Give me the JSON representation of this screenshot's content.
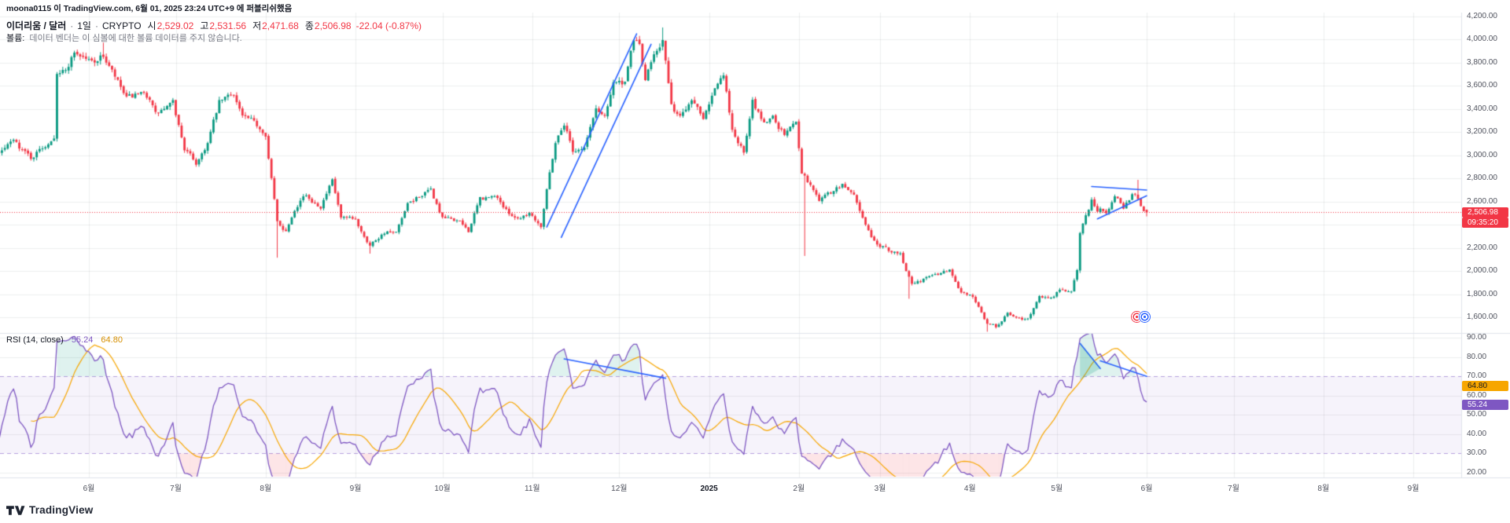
{
  "publish_bar": {
    "text": "moona0115 이 TradingView.com, 6월 01, 2025 23:24 UTC+9 에 퍼블리쉬했음"
  },
  "legend": {
    "symbol": "이더리움 / 달러",
    "interval": "1일",
    "exchange": "CRYPTO",
    "open_label": "시",
    "open": "2,529.02",
    "high_label": "고",
    "high": "2,531.56",
    "low_label": "저",
    "low": "2,471.68",
    "close_label": "종",
    "close": "2,506.98",
    "change": "-22.04 (-0.87%)",
    "volume_label": "볼륨:",
    "volume_message": "데이터 벤더는 이 심볼에 대한 볼륨 데이터를 주지 않습니다."
  },
  "rsi_legend": {
    "title": "RSI (14, close)",
    "value": "55.24",
    "ma_value": "64.80"
  },
  "axis": {
    "price_badge": "2,506.98",
    "countdown": "09:35:20",
    "rsi_badge": "55.24",
    "rsi_ma_badge": "64.80"
  },
  "footer": {
    "brand": "TradingView"
  },
  "colors": {
    "up": "#089981",
    "down": "#f23645",
    "price_line": "#f23645",
    "line_blue": "#2962ff",
    "rsi": "#7e57c2",
    "rsi_ma": "#f7a600",
    "band_fill": "rgba(126,87,194,0.07)",
    "band_line": "rgba(126,87,194,0.55)",
    "ob_fill": "rgba(8,153,129,0.13)",
    "os_fill": "rgba(242,54,69,0.13)",
    "drawing_fill": "rgba(8,153,129,0.22)",
    "grid": "rgba(42,46,57,0.08)",
    "axis_border": "#e0e3eb",
    "badge_text_dark": "#131722"
  },
  "chart_data": {
    "type": "candlestick",
    "title": "이더리움 / 달러 · 1일 · CRYPTO",
    "current_price": 2506.98,
    "last_candle": {
      "open": 2529.02,
      "high": 2531.56,
      "low": 2471.68,
      "close": 2506.98
    },
    "price_axis": {
      "min": 1600,
      "max": 4200,
      "step": 200
    },
    "rsi": {
      "period": 14,
      "value": 55.24,
      "ma": 64.8,
      "band": [
        30,
        70
      ],
      "ticks": [
        90,
        80,
        70,
        60,
        50,
        40,
        30,
        20
      ]
    },
    "time_axis": [
      {
        "label": "6월",
        "date": "2024-06-01",
        "emphasis": false
      },
      {
        "label": "7월",
        "date": "2024-07-01",
        "emphasis": false
      },
      {
        "label": "8월",
        "date": "2024-08-01",
        "emphasis": false
      },
      {
        "label": "9월",
        "date": "2024-09-01",
        "emphasis": false
      },
      {
        "label": "10월",
        "date": "2024-10-01",
        "emphasis": false
      },
      {
        "label": "11월",
        "date": "2024-11-01",
        "emphasis": false
      },
      {
        "label": "12월",
        "date": "2024-12-01",
        "emphasis": false
      },
      {
        "label": "2025",
        "date": "2025-01-01",
        "emphasis": true
      },
      {
        "label": "2월",
        "date": "2025-02-01",
        "emphasis": false
      },
      {
        "label": "3월",
        "date": "2025-03-01",
        "emphasis": false
      },
      {
        "label": "4월",
        "date": "2025-04-01",
        "emphasis": false
      },
      {
        "label": "5월",
        "date": "2025-05-01",
        "emphasis": false
      },
      {
        "label": "6월",
        "date": "2025-06-01",
        "emphasis": false
      },
      {
        "label": "7월",
        "date": "2025-07-01",
        "emphasis": false
      },
      {
        "label": "8월",
        "date": "2025-08-01",
        "emphasis": false
      },
      {
        "label": "9월",
        "date": "2025-09-01",
        "emphasis": false
      }
    ],
    "anchors": [
      [
        "2024-04-15",
        3100
      ],
      [
        "2024-04-22",
        3180
      ],
      [
        "2024-05-01",
        3010
      ],
      [
        "2024-05-06",
        3120
      ],
      [
        "2024-05-12",
        2980
      ],
      [
        "2024-05-17",
        3090
      ],
      [
        "2024-05-20",
        3180
      ],
      [
        "2024-05-21",
        3740
      ],
      [
        "2024-05-24",
        3730
      ],
      [
        "2024-05-27",
        3900
      ],
      [
        "2024-06-02",
        3810
      ],
      [
        "2024-06-06",
        3860
      ],
      [
        "2024-06-10",
        3670
      ],
      [
        "2024-06-14",
        3480
      ],
      [
        "2024-06-17",
        3510
      ],
      [
        "2024-06-22",
        3500
      ],
      [
        "2024-06-24",
        3350
      ],
      [
        "2024-06-30",
        3440
      ],
      [
        "2024-07-04",
        3060
      ],
      [
        "2024-07-08",
        2930
      ],
      [
        "2024-07-12",
        3110
      ],
      [
        "2024-07-16",
        3450
      ],
      [
        "2024-07-21",
        3540
      ],
      [
        "2024-07-24",
        3340
      ],
      [
        "2024-07-28",
        3270
      ],
      [
        "2024-08-01",
        3200
      ],
      [
        "2024-08-02",
        2990
      ],
      [
        "2024-08-05",
        2420
      ],
      [
        "2024-08-08",
        2350
      ],
      [
        "2024-08-11",
        2550
      ],
      [
        "2024-08-14",
        2660
      ],
      [
        "2024-08-17",
        2610
      ],
      [
        "2024-08-20",
        2570
      ],
      [
        "2024-08-24",
        2770
      ],
      [
        "2024-08-27",
        2450
      ],
      [
        "2024-09-01",
        2430
      ],
      [
        "2024-09-06",
        2230
      ],
      [
        "2024-09-11",
        2340
      ],
      [
        "2024-09-15",
        2320
      ],
      [
        "2024-09-19",
        2560
      ],
      [
        "2024-09-23",
        2650
      ],
      [
        "2024-09-27",
        2690
      ],
      [
        "2024-10-01",
        2450
      ],
      [
        "2024-10-06",
        2440
      ],
      [
        "2024-10-10",
        2350
      ],
      [
        "2024-10-14",
        2620
      ],
      [
        "2024-10-20",
        2640
      ],
      [
        "2024-10-23",
        2520
      ],
      [
        "2024-10-27",
        2460
      ],
      [
        "2024-10-31",
        2510
      ],
      [
        "2024-11-04",
        2400
      ],
      [
        "2024-11-06",
        2720
      ],
      [
        "2024-11-09",
        3120
      ],
      [
        "2024-11-12",
        3280
      ],
      [
        "2024-11-15",
        3050
      ],
      [
        "2024-11-19",
        3070
      ],
      [
        "2024-11-23",
        3400
      ],
      [
        "2024-11-26",
        3340
      ],
      [
        "2024-11-29",
        3650
      ],
      [
        "2024-12-03",
        3610
      ],
      [
        "2024-12-06",
        4000
      ],
      [
        "2024-12-08",
        3960
      ],
      [
        "2024-12-10",
        3630
      ],
      [
        "2024-12-13",
        3890
      ],
      [
        "2024-12-16",
        4010
      ],
      [
        "2024-12-19",
        3410
      ],
      [
        "2024-12-22",
        3330
      ],
      [
        "2024-12-26",
        3500
      ],
      [
        "2024-12-30",
        3350
      ],
      [
        "2025-01-03",
        3610
      ],
      [
        "2025-01-06",
        3680
      ],
      [
        "2025-01-09",
        3220
      ],
      [
        "2025-01-13",
        3020
      ],
      [
        "2025-01-16",
        3450
      ],
      [
        "2025-01-20",
        3280
      ],
      [
        "2025-01-23",
        3340
      ],
      [
        "2025-01-27",
        3180
      ],
      [
        "2025-01-31",
        3300
      ],
      [
        "2025-02-02",
        2870
      ],
      [
        "2025-02-05",
        2740
      ],
      [
        "2025-02-08",
        2620
      ],
      [
        "2025-02-12",
        2680
      ],
      [
        "2025-02-16",
        2740
      ],
      [
        "2025-02-20",
        2660
      ],
      [
        "2025-02-25",
        2340
      ],
      [
        "2025-02-28",
        2220
      ],
      [
        "2025-03-05",
        2170
      ],
      [
        "2025-03-08",
        2140
      ],
      [
        "2025-03-12",
        1900
      ],
      [
        "2025-03-16",
        1930
      ],
      [
        "2025-03-20",
        1970
      ],
      [
        "2025-03-25",
        2010
      ],
      [
        "2025-03-29",
        1820
      ],
      [
        "2025-04-02",
        1790
      ],
      [
        "2025-04-07",
        1550
      ],
      [
        "2025-04-10",
        1520
      ],
      [
        "2025-04-14",
        1630
      ],
      [
        "2025-04-17",
        1590
      ],
      [
        "2025-04-21",
        1580
      ],
      [
        "2025-04-25",
        1790
      ],
      [
        "2025-04-29",
        1760
      ],
      [
        "2025-05-02",
        1840
      ],
      [
        "2025-05-06",
        1810
      ],
      [
        "2025-05-08",
        2010
      ],
      [
        "2025-05-09",
        2340
      ],
      [
        "2025-05-11",
        2480
      ],
      [
        "2025-05-13",
        2610
      ],
      [
        "2025-05-15",
        2540
      ],
      [
        "2025-05-18",
        2520
      ],
      [
        "2025-05-21",
        2660
      ],
      [
        "2025-05-24",
        2560
      ],
      [
        "2025-05-27",
        2670
      ],
      [
        "2025-05-29",
        2630
      ],
      [
        "2025-05-31",
        2530
      ],
      [
        "2025-06-01",
        2506.98
      ]
    ],
    "wick_overrides": [
      [
        "2024-06-06",
        "high",
        3974
      ],
      [
        "2024-08-05",
        "low",
        2115
      ],
      [
        "2024-09-06",
        "low",
        2150
      ],
      [
        "2024-12-16",
        "high",
        4105
      ],
      [
        "2025-02-03",
        "low",
        2130
      ],
      [
        "2025-03-11",
        "low",
        1760
      ],
      [
        "2025-04-07",
        "low",
        1475
      ],
      [
        "2025-05-29",
        "high",
        2788
      ]
    ],
    "drawings": {
      "price_lines": [
        {
          "x1": "2024-11-06",
          "p1": 2380,
          "x2": "2024-12-07",
          "p2": 4050
        },
        {
          "x1": "2024-11-11",
          "p1": 2290,
          "x2": "2024-12-12",
          "p2": 3960
        },
        {
          "x1": "2025-05-13",
          "p1": 2730,
          "x2": "2025-06-01",
          "p2": 2700
        },
        {
          "x1": "2025-05-15",
          "p1": 2450,
          "x2": "2025-06-01",
          "p2": 2650
        }
      ],
      "rsi_lines": [
        {
          "x1": "2024-11-12",
          "r1": 79,
          "x2": "2024-12-17",
          "r2": 69
        },
        {
          "x1": "2025-05-09",
          "r1": 87,
          "x2": "2025-05-16",
          "r2": 74
        },
        {
          "x1": "2025-05-16",
          "r1": 78,
          "x2": "2025-06-01",
          "r2": 70
        }
      ],
      "rsi_fill": [
        [
          "2025-05-09",
          87
        ],
        [
          "2025-05-16",
          74
        ],
        [
          "2025-05-09",
          68
        ]
      ],
      "flags_icon": {
        "date": "2025-05-30",
        "price": 1600
      }
    }
  }
}
